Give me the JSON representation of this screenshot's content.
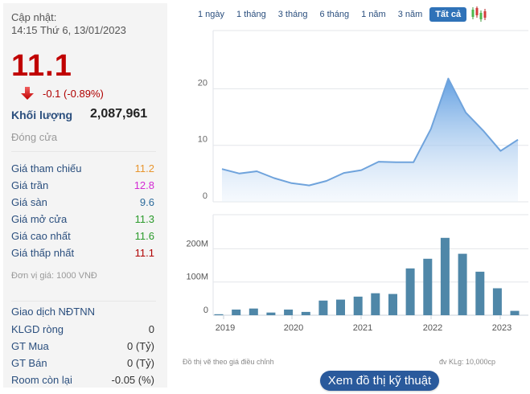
{
  "summary": {
    "update_label": "Cập nhật:",
    "update_time": "14:15 Thứ 6, 13/01/2023",
    "price": "11.1",
    "change": "-0.1 (-0.89%)",
    "change_icon": "down-arrow-icon",
    "volume_label": "Khối lượng",
    "volume_value": "2,087,961",
    "status": "Đóng cửa"
  },
  "prices": [
    {
      "label": "Giá tham chiếu",
      "value": "11.2",
      "color": "#e8962f"
    },
    {
      "label": "Giá trần",
      "value": "12.8",
      "color": "#d42ad4"
    },
    {
      "label": "Giá sàn",
      "value": "9.6",
      "color": "#2b6a9b"
    },
    {
      "label": "Giá mở cửa",
      "value": "11.3",
      "color": "#2a9a2a"
    },
    {
      "label": "Giá cao nhất",
      "value": "11.6",
      "color": "#2a9a2a"
    },
    {
      "label": "Giá thấp nhất",
      "value": "11.1",
      "color": "#b00000"
    }
  ],
  "price_unit": "Đơn vị giá: 1000 VNĐ",
  "foreign": {
    "title": "Giao dịch NĐTNN",
    "rows": [
      {
        "label": "KLGD ròng",
        "value": "0"
      },
      {
        "label": "GT Mua",
        "value": "0 (Tỷ)"
      },
      {
        "label": "GT Bán",
        "value": "0 (Tỷ)"
      },
      {
        "label": "Room còn lại",
        "value": "-0.05 (%)"
      }
    ]
  },
  "tabs": [
    {
      "label": "1 ngày",
      "active": false
    },
    {
      "label": "1 tháng",
      "active": false
    },
    {
      "label": "3 tháng",
      "active": false
    },
    {
      "label": "6 tháng",
      "active": false
    },
    {
      "label": "1 năm",
      "active": false
    },
    {
      "label": "3 năm",
      "active": false
    },
    {
      "label": "Tất cả",
      "active": true
    }
  ],
  "candlestick_icon": "candlestick-icon",
  "notes": {
    "adjusted": "Đồ thị vẽ theo giá điều chỉnh",
    "volume_unit": "đv KLg: 10,000cp"
  },
  "tech_button": "Xem đồ thị kỹ thuật",
  "colors": {
    "price_red": "#c00000",
    "label_blue": "#2b4f7e",
    "area_line": "#6fa3dc",
    "bar": "#4f87a8",
    "active_tab": "#2f72b8",
    "button": "#2a5a9c"
  },
  "chart_data": [
    {
      "type": "area",
      "title": "",
      "xlabel": "",
      "ylabel": "",
      "ylim": [
        0,
        30
      ],
      "yticks": [
        "0",
        "10",
        "20"
      ],
      "grid": true,
      "x_index": [
        0,
        1,
        2,
        3,
        4,
        5,
        6,
        7,
        8,
        9,
        10,
        11,
        12,
        13,
        14,
        15,
        16,
        17
      ],
      "values": [
        5.8,
        5.0,
        5.4,
        4.2,
        3.3,
        2.9,
        3.7,
        5.1,
        5.6,
        7.1,
        7.0,
        7.0,
        12.9,
        21.8,
        15.8,
        12.6,
        9.0,
        11.0
      ]
    },
    {
      "type": "bar",
      "title": "",
      "xlabel": "",
      "ylabel": "",
      "ylim": [
        0,
        300
      ],
      "yticks": [
        "0",
        "100M",
        "200M"
      ],
      "xticks": [
        "2019",
        "2020",
        "2021",
        "2022",
        "2023"
      ],
      "grid": true,
      "unit": "M",
      "values": [
        3,
        17,
        20,
        8,
        17,
        10,
        44,
        47,
        56,
        66,
        64,
        141,
        170,
        233,
        185,
        131,
        81,
        13
      ]
    }
  ]
}
